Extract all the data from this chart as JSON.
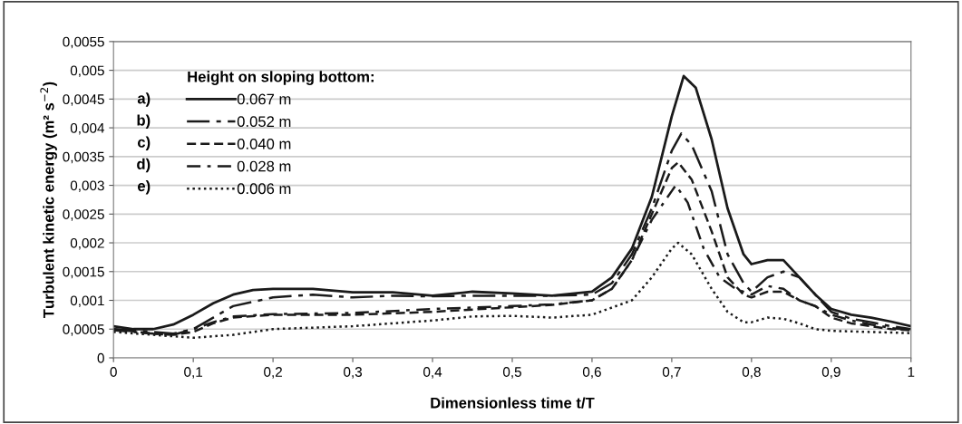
{
  "chart_data": {
    "type": "line",
    "xlabel": "Dimensionless time t/T",
    "ylabel": "Turbulent kinetic energy (m² s$^{−2}$)",
    "legend_title": "Height on sloping bottom:",
    "legend": "top left",
    "grid": "y",
    "marker": "none",
    "annotations": [
      "a)",
      "b)",
      "c)",
      "d)",
      "e)"
    ],
    "xlim": [
      0,
      1
    ],
    "xticks": [
      0,
      {
        "value": 0.1,
        "label": "0,1"
      },
      {
        "value": 0.2,
        "label": "0,2"
      },
      {
        "value": 0.3,
        "label": "0,3"
      },
      {
        "value": 0.4,
        "label": "0,4"
      },
      {
        "value": 0.5,
        "label": "0,5"
      },
      {
        "value": 0.6,
        "label": "0,6"
      },
      {
        "value": 0.7,
        "label": "0,7"
      },
      {
        "value": 0.8,
        "label": "0,8"
      },
      {
        "value": 0.9,
        "label": "0,9"
      },
      1
    ],
    "ylim": [
      0,
      0.0055
    ],
    "yticks": [
      0,
      {
        "value": 0.0005,
        "label": "0,0005"
      },
      {
        "value": 0.001,
        "label": "0,001"
      },
      {
        "value": 0.0015,
        "label": "0,0015"
      },
      {
        "value": 0.002,
        "label": "0,002"
      },
      {
        "value": 0.0025,
        "label": "0,0025"
      },
      {
        "value": 0.003,
        "label": "0,003"
      },
      {
        "value": 0.0035,
        "label": "0,0035"
      },
      {
        "value": 0.004,
        "label": "0,004"
      },
      {
        "value": 0.0045,
        "label": "0,0045"
      },
      {
        "value": 0.005,
        "label": "0,005"
      },
      {
        "value": 0.0055,
        "label": "0,0055"
      }
    ],
    "series": [
      {
        "name": "0.067 m",
        "color": "#1a1a1a",
        "line_style": "solid",
        "x": [
          0,
          0.025,
          0.05,
          0.075,
          0.1,
          0.125,
          0.15,
          0.175,
          0.2,
          0.25,
          0.3,
          0.35,
          0.4,
          0.45,
          0.5,
          0.55,
          0.6,
          0.625,
          0.65,
          0.675,
          0.7,
          0.715,
          0.73,
          0.75,
          0.77,
          0.79,
          0.8,
          0.82,
          0.84,
          0.86,
          0.88,
          0.9,
          0.925,
          0.95,
          0.975,
          1
        ],
        "values": [
          0.00055,
          0.0005,
          0.0005,
          0.00058,
          0.00075,
          0.00095,
          0.0011,
          0.00118,
          0.0012,
          0.0012,
          0.00114,
          0.00114,
          0.00108,
          0.00115,
          0.00112,
          0.00108,
          0.00115,
          0.0014,
          0.0019,
          0.0028,
          0.0042,
          0.0049,
          0.0047,
          0.0038,
          0.0026,
          0.0018,
          0.00163,
          0.0017,
          0.0017,
          0.0014,
          0.0011,
          0.00085,
          0.00075,
          0.0007,
          0.00063,
          0.00055
        ]
      },
      {
        "name": "0.052 m",
        "color": "#1a1a1a",
        "line_style": "longdash",
        "x": [
          0,
          0.05,
          0.075,
          0.1,
          0.125,
          0.15,
          0.2,
          0.25,
          0.3,
          0.35,
          0.4,
          0.45,
          0.5,
          0.55,
          0.6,
          0.625,
          0.65,
          0.675,
          0.7,
          0.712,
          0.725,
          0.75,
          0.77,
          0.79,
          0.8,
          0.82,
          0.84,
          0.86,
          0.88,
          0.9,
          0.925,
          0.95,
          0.975,
          1
        ],
        "values": [
          0.0005,
          0.00045,
          0.00042,
          0.0005,
          0.0007,
          0.0009,
          0.00105,
          0.0011,
          0.00105,
          0.00108,
          0.00107,
          0.00108,
          0.00108,
          0.00108,
          0.0011,
          0.0013,
          0.0018,
          0.0026,
          0.0036,
          0.0039,
          0.0037,
          0.0029,
          0.0018,
          0.0013,
          0.00115,
          0.0014,
          0.0015,
          0.0014,
          0.0011,
          0.0008,
          0.00068,
          0.00062,
          0.00055,
          0.0005
        ]
      },
      {
        "name": "0.040 m",
        "color": "#1a1a1a",
        "line_style": "dashed",
        "x": [
          0,
          0.05,
          0.075,
          0.1,
          0.125,
          0.15,
          0.2,
          0.3,
          0.4,
          0.5,
          0.55,
          0.6,
          0.625,
          0.65,
          0.675,
          0.7,
          0.708,
          0.725,
          0.75,
          0.77,
          0.79,
          0.8,
          0.82,
          0.84,
          0.86,
          0.88,
          0.9,
          0.925,
          0.95,
          0.975,
          1
        ],
        "values": [
          0.0005,
          0.00042,
          0.0004,
          0.00045,
          0.0006,
          0.0007,
          0.00075,
          0.00075,
          0.0008,
          0.00088,
          0.00092,
          0.001,
          0.0012,
          0.0017,
          0.0025,
          0.0033,
          0.0034,
          0.0031,
          0.0022,
          0.0014,
          0.0011,
          0.00105,
          0.00115,
          0.00115,
          0.001,
          0.0009,
          0.0007,
          0.0006,
          0.00055,
          0.0005,
          0.00048
        ]
      },
      {
        "name": "0.028 m",
        "color": "#1a1a1a",
        "line_style": "dashdot",
        "x": [
          0,
          0.05,
          0.075,
          0.1,
          0.125,
          0.15,
          0.2,
          0.3,
          0.4,
          0.5,
          0.55,
          0.6,
          0.625,
          0.65,
          0.675,
          0.7,
          0.705,
          0.72,
          0.74,
          0.76,
          0.78,
          0.8,
          0.82,
          0.84,
          0.86,
          0.88,
          0.9,
          0.925,
          0.95,
          0.975,
          1
        ],
        "values": [
          0.00048,
          0.00042,
          0.0004,
          0.0005,
          0.00062,
          0.00072,
          0.00076,
          0.00078,
          0.00085,
          0.0009,
          0.00093,
          0.001,
          0.0012,
          0.0017,
          0.0024,
          0.0029,
          0.003,
          0.0027,
          0.0019,
          0.0014,
          0.0012,
          0.0011,
          0.00125,
          0.0012,
          0.001,
          0.0009,
          0.00075,
          0.00065,
          0.00058,
          0.00052,
          0.00048
        ]
      },
      {
        "name": "0.006 m",
        "color": "#1a1a1a",
        "line_style": "dotted",
        "x": [
          0,
          0.05,
          0.1,
          0.15,
          0.2,
          0.3,
          0.4,
          0.45,
          0.5,
          0.55,
          0.6,
          0.65,
          0.675,
          0.7,
          0.708,
          0.725,
          0.75,
          0.77,
          0.79,
          0.8,
          0.82,
          0.84,
          0.86,
          0.88,
          0.9,
          0.95,
          1
        ],
        "values": [
          0.00045,
          0.0004,
          0.00035,
          0.0004,
          0.0005,
          0.00055,
          0.00065,
          0.00072,
          0.00073,
          0.0007,
          0.00075,
          0.001,
          0.0014,
          0.0019,
          0.002,
          0.0018,
          0.0012,
          0.0008,
          0.00062,
          0.00062,
          0.0007,
          0.00068,
          0.0006,
          0.0005,
          0.00047,
          0.00045,
          0.00043
        ]
      }
    ]
  }
}
